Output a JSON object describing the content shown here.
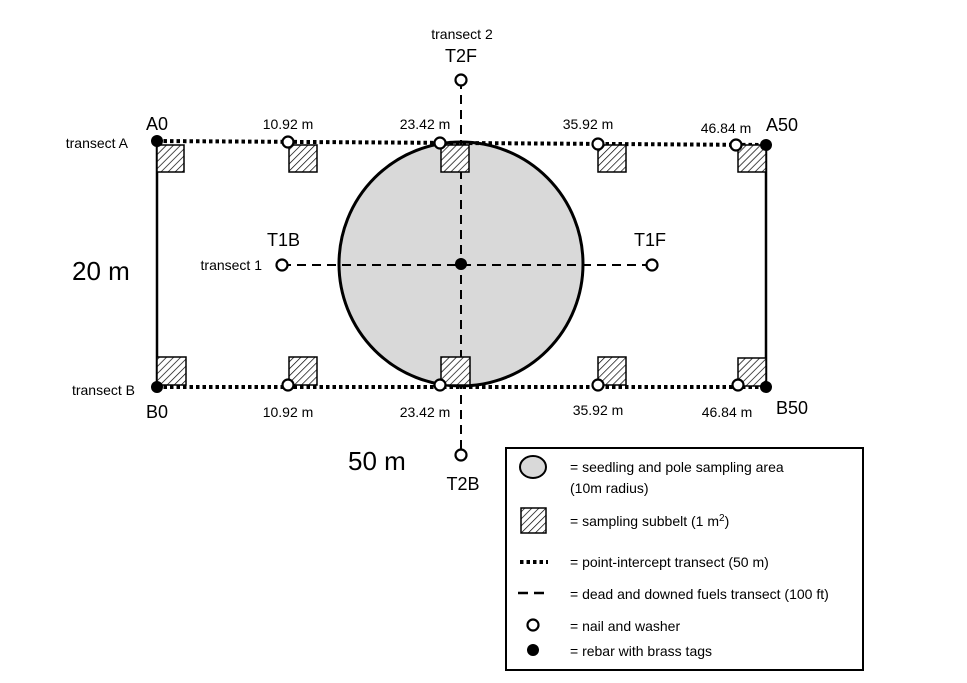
{
  "transect_labels": {
    "transect_a": "transect A",
    "transect_b": "transect B",
    "transect_1": "transect 1",
    "transect_2": "transect 2"
  },
  "point_codes": {
    "a0": "A0",
    "a50": "A50",
    "b0": "B0",
    "b50": "B50",
    "t1b": "T1B",
    "t1f": "T1F",
    "t2f": "T2F",
    "t2b": "T2B"
  },
  "distances": {
    "top": [
      "10.92 m",
      "23.42 m",
      "35.92 m",
      "46.84 m"
    ],
    "bottom": [
      "10.92 m",
      "23.42 m",
      "35.92 m",
      "46.84 m"
    ]
  },
  "dimensions": {
    "width": "20 m",
    "length": "50 m"
  },
  "legend": {
    "circle_line1": "= seedling and pole sampling area",
    "circle_line2": "(10m radius)",
    "subbelt_prefix": "= sampling subbelt (1 m",
    "subbelt_sup": "2",
    "subbelt_suffix": ")",
    "dotted": "= point-intercept transect (50 m)",
    "dashed": "= dead and downed fuels transect (100 ft)",
    "nail": "= nail and washer",
    "rebar": "= rebar with brass tags"
  },
  "colors": {
    "circle_fill": "#d9d9d9",
    "line": "#000000",
    "open_marker_fill": "#ffffff"
  }
}
